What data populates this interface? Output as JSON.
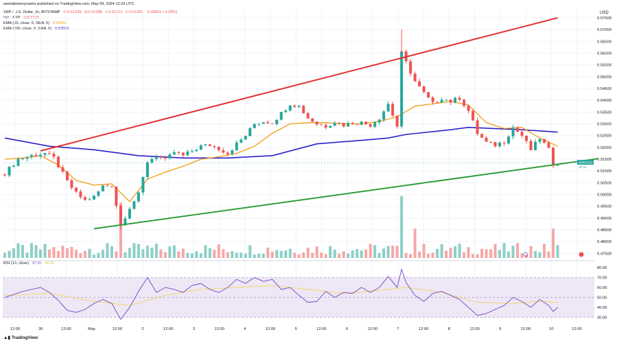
{
  "header": {
    "publisher": "weetabixismyname published on TradingView.com, May 09, 2024 12:25 UTC",
    "symbol_line": "XRP / U.S. Dollar, 1h, BITSTAMP",
    "ohlc": [
      "O:0.51339",
      "H:0.51388",
      "L:0.51312",
      "C:0.51352",
      "-0.00001 (-0.00%)"
    ],
    "vol_label": "Vol · XRP",
    "vol_value": "118.371K",
    "ema30_label": "EMA (30, close, 0, SMA, 5)",
    "ema30_value": "0.52062",
    "ema200_label": "EMA (200, close, 0, SMA, 5)",
    "ema200_value": "0.52599",
    "rsi_label": "RSI (14, close)",
    "rsi_value": "37.96",
    "rsi_value2": "46.20"
  },
  "footer": {
    "brand": "TradingView"
  },
  "colors": {
    "up": "#26a69a",
    "down": "#ef5350",
    "vol_up": "#8ccfc7",
    "vol_down": "#f5a8a6",
    "ema30": "#f39c12",
    "ema200": "#2a1fc8",
    "upper_line": "#e0312f",
    "lower_line": "#2f9e3a",
    "rsi_line": "#7e57c2",
    "rsi_ma": "#f2d86b",
    "rsi_band": "#ede7f6"
  },
  "chart_data": {
    "type": "candlestick",
    "symbol": "XRPUSD",
    "title": "XRP / U.S. Dollar, 1h, BITSTAMP",
    "price_axis_label": "USD",
    "y_ticks": [
      "0.57500",
      "0.57000",
      "0.56500",
      "0.56000",
      "0.55500",
      "0.55000",
      "0.54500",
      "0.54000",
      "0.53500",
      "0.53000",
      "0.52500",
      "0.52000",
      "0.51500",
      "0.51000",
      "0.50500",
      "0.50000",
      "0.49500",
      "0.49000",
      "0.48500",
      "0.48000",
      "0.47500"
    ],
    "x_ticks": [
      "12:00",
      "30",
      "12:00",
      "May",
      "12:00",
      "2",
      "12:00",
      "3",
      "12:00",
      "4",
      "12:00",
      "5",
      "12:00",
      "6",
      "12:00",
      "7",
      "12:00",
      "8",
      "12:00",
      "9",
      "12:00",
      "10",
      "12:00"
    ],
    "ylim": [
      0.4725,
      0.5785
    ],
    "last_price_tag": "XRPUSD · 0.51352",
    "last_price_time": "34:11",
    "close_path": [
      [
        0,
        0.509
      ],
      [
        3,
        0.515
      ],
      [
        6,
        0.5165
      ],
      [
        9,
        0.5175
      ],
      [
        11,
        0.5155
      ],
      [
        14,
        0.5055
      ],
      [
        16,
        0.5005
      ],
      [
        18,
        0.4975
      ],
      [
        20,
        0.499
      ],
      [
        22,
        0.5035
      ],
      [
        24,
        0.504
      ],
      [
        26,
        0.487
      ],
      [
        28,
        0.4945
      ],
      [
        30,
        0.5
      ],
      [
        32,
        0.514
      ],
      [
        34,
        0.5165
      ],
      [
        36,
        0.5145
      ],
      [
        38,
        0.518
      ],
      [
        40,
        0.5165
      ],
      [
        42,
        0.5185
      ],
      [
        44,
        0.5205
      ],
      [
        46,
        0.521
      ],
      [
        48,
        0.5195
      ],
      [
        50,
        0.5175
      ],
      [
        52,
        0.5215
      ],
      [
        54,
        0.525
      ],
      [
        56,
        0.53
      ],
      [
        58,
        0.531
      ],
      [
        60,
        0.5305
      ],
      [
        62,
        0.5345
      ],
      [
        64,
        0.5385
      ],
      [
        66,
        0.5375
      ],
      [
        68,
        0.5325
      ],
      [
        70,
        0.53
      ],
      [
        72,
        0.529
      ],
      [
        74,
        0.531
      ],
      [
        76,
        0.5295
      ],
      [
        78,
        0.5305
      ],
      [
        80,
        0.5305
      ],
      [
        82,
        0.5295
      ],
      [
        84,
        0.5325
      ],
      [
        86,
        0.5385
      ],
      [
        88,
        0.529
      ],
      [
        89,
        0.56
      ],
      [
        90,
        0.556
      ],
      [
        92,
        0.548
      ],
      [
        94,
        0.543
      ],
      [
        96,
        0.5385
      ],
      [
        98,
        0.541
      ],
      [
        100,
        0.5395
      ],
      [
        102,
        0.541
      ],
      [
        104,
        0.5355
      ],
      [
        106,
        0.526
      ],
      [
        108,
        0.522
      ],
      [
        110,
        0.521
      ],
      [
        112,
        0.5225
      ],
      [
        114,
        0.5285
      ],
      [
        116,
        0.525
      ],
      [
        118,
        0.519
      ],
      [
        120,
        0.524
      ],
      [
        122,
        0.519
      ],
      [
        123,
        0.513
      ],
      [
        124,
        0.5135
      ]
    ],
    "ema30_path": [
      [
        0,
        0.515
      ],
      [
        4,
        0.5155
      ],
      [
        8,
        0.5165
      ],
      [
        12,
        0.5125
      ],
      [
        16,
        0.506
      ],
      [
        20,
        0.504
      ],
      [
        24,
        0.5045
      ],
      [
        28,
        0.497
      ],
      [
        32,
        0.5065
      ],
      [
        36,
        0.5095
      ],
      [
        40,
        0.512
      ],
      [
        44,
        0.515
      ],
      [
        48,
        0.516
      ],
      [
        52,
        0.5175
      ],
      [
        56,
        0.5205
      ],
      [
        60,
        0.526
      ],
      [
        64,
        0.53
      ],
      [
        68,
        0.5305
      ],
      [
        72,
        0.5305
      ],
      [
        76,
        0.53
      ],
      [
        80,
        0.53
      ],
      [
        84,
        0.531
      ],
      [
        88,
        0.533
      ],
      [
        92,
        0.5375
      ],
      [
        96,
        0.5385
      ],
      [
        100,
        0.5395
      ],
      [
        104,
        0.538
      ],
      [
        108,
        0.5305
      ],
      [
        112,
        0.528
      ],
      [
        116,
        0.5285
      ],
      [
        120,
        0.524
      ],
      [
        124,
        0.5205
      ]
    ],
    "ema200_path": [
      [
        0,
        0.524
      ],
      [
        10,
        0.5205
      ],
      [
        20,
        0.519
      ],
      [
        30,
        0.5165
      ],
      [
        40,
        0.5155
      ],
      [
        50,
        0.5155
      ],
      [
        60,
        0.5165
      ],
      [
        70,
        0.5215
      ],
      [
        80,
        0.523
      ],
      [
        86,
        0.524
      ],
      [
        90,
        0.5255
      ],
      [
        100,
        0.5275
      ],
      [
        104,
        0.5285
      ],
      [
        110,
        0.528
      ],
      [
        116,
        0.5275
      ],
      [
        124,
        0.5265
      ]
    ],
    "upper_trendline": [
      [
        8,
        0.5185
      ],
      [
        124,
        0.575
      ]
    ],
    "lower_trendline": [
      [
        20,
        0.4855
      ],
      [
        133,
        0.5152
      ]
    ],
    "rsi": {
      "label": "RSI (14, close)",
      "ticks": [
        "80.00",
        "70.00",
        "60.00",
        "50.00",
        "40.00",
        "30.00"
      ],
      "ylim": [
        25,
        84
      ],
      "band": [
        30,
        70
      ],
      "path": [
        [
          0,
          50
        ],
        [
          4,
          56
        ],
        [
          8,
          60
        ],
        [
          10,
          55
        ],
        [
          12,
          47
        ],
        [
          14,
          37
        ],
        [
          16,
          35
        ],
        [
          18,
          38
        ],
        [
          20,
          44
        ],
        [
          22,
          48
        ],
        [
          24,
          44
        ],
        [
          26,
          28
        ],
        [
          28,
          40
        ],
        [
          30,
          56
        ],
        [
          32,
          70
        ],
        [
          34,
          55
        ],
        [
          36,
          60
        ],
        [
          38,
          58
        ],
        [
          40,
          55
        ],
        [
          42,
          62
        ],
        [
          44,
          64
        ],
        [
          46,
          58
        ],
        [
          48,
          55
        ],
        [
          50,
          60
        ],
        [
          52,
          68
        ],
        [
          54,
          64
        ],
        [
          56,
          70
        ],
        [
          58,
          66
        ],
        [
          60,
          68
        ],
        [
          62,
          58
        ],
        [
          64,
          60
        ],
        [
          66,
          52
        ],
        [
          68,
          45
        ],
        [
          70,
          46
        ],
        [
          72,
          56
        ],
        [
          74,
          50
        ],
        [
          76,
          55
        ],
        [
          78,
          54
        ],
        [
          80,
          60
        ],
        [
          82,
          55
        ],
        [
          84,
          60
        ],
        [
          86,
          71
        ],
        [
          88,
          60
        ],
        [
          89,
          78
        ],
        [
          90,
          65
        ],
        [
          92,
          52
        ],
        [
          94,
          46
        ],
        [
          96,
          54
        ],
        [
          98,
          56
        ],
        [
          100,
          52
        ],
        [
          102,
          48
        ],
        [
          104,
          40
        ],
        [
          106,
          32
        ],
        [
          108,
          34
        ],
        [
          110,
          38
        ],
        [
          112,
          42
        ],
        [
          114,
          50
        ],
        [
          116,
          46
        ],
        [
          118,
          40
        ],
        [
          120,
          48
        ],
        [
          122,
          42
        ],
        [
          123,
          36
        ],
        [
          124,
          40
        ]
      ],
      "ma_path": [
        [
          0,
          52
        ],
        [
          10,
          54
        ],
        [
          20,
          46
        ],
        [
          28,
          42
        ],
        [
          36,
          52
        ],
        [
          44,
          58
        ],
        [
          52,
          60
        ],
        [
          60,
          62
        ],
        [
          68,
          58
        ],
        [
          76,
          54
        ],
        [
          84,
          57
        ],
        [
          90,
          60
        ],
        [
          98,
          55
        ],
        [
          106,
          45
        ],
        [
          114,
          44
        ],
        [
          120,
          46
        ],
        [
          124,
          45
        ]
      ]
    },
    "volume": {
      "note": "relative heights from 0 to 1",
      "spike_hours": [
        [
          26,
          0.85
        ],
        [
          89,
          0.95
        ],
        [
          92,
          0.45
        ],
        [
          123,
          0.45
        ]
      ]
    }
  }
}
